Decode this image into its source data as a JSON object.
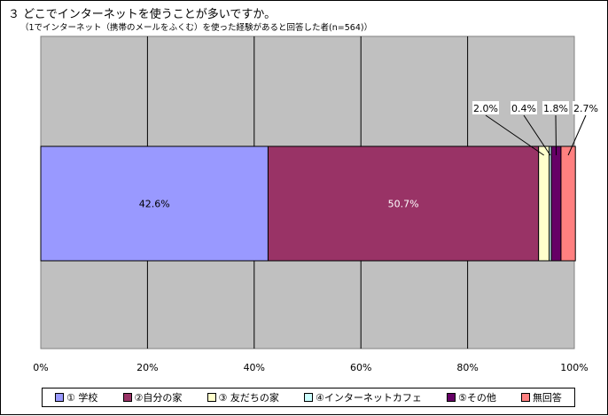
{
  "title": "３ どこでインターネットを使うことが多いですか。",
  "subtitle": "（1でインターネット（携帯のメールをふくむ）を使った経験があると回答した者(n=564)）",
  "chart_data": {
    "type": "bar",
    "orientation": "horizontal-stacked-100",
    "categories": [
      ""
    ],
    "series": [
      {
        "name": "① 学校",
        "values": [
          42.6
        ],
        "label": "42.6%",
        "color": "#9999ff"
      },
      {
        "name": "②自分の家",
        "values": [
          50.7
        ],
        "label": "50.7%",
        "color": "#993366"
      },
      {
        "name": "③ 友だちの家",
        "values": [
          2.0
        ],
        "label": "2.0%",
        "color": "#ffffcc"
      },
      {
        "name": "④インターネットカフェ",
        "values": [
          0.4
        ],
        "label": "0.4%",
        "color": "#ccffff"
      },
      {
        "name": "⑤その他",
        "values": [
          1.8
        ],
        "label": "1.8%",
        "color": "#660066"
      },
      {
        "name": "無回答",
        "values": [
          2.7
        ],
        "label": "2.7%",
        "color": "#ff8080"
      }
    ],
    "xlim": [
      0,
      100
    ],
    "x_ticks": [
      "0%",
      "20%",
      "40%",
      "60%",
      "80%",
      "100%"
    ],
    "grid": true,
    "legend_position": "bottom",
    "plot_background": "#c0c0c0"
  }
}
